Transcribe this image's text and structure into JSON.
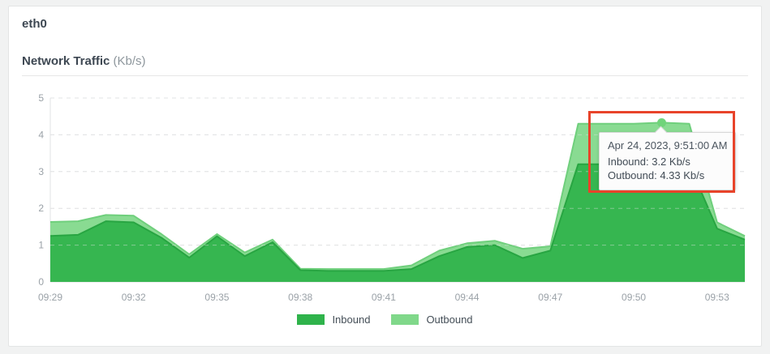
{
  "page": {
    "interface_name": "eth0",
    "chart_title": "Network Traffic",
    "chart_title_unit": "(Kb/s)"
  },
  "colors": {
    "inbound_fill": "#2fb34b",
    "inbound_stroke": "#28a542",
    "outbound_fill": "#80d88a",
    "outbound_stroke": "#6fcf7c",
    "grid_line": "#e2e3e4",
    "axis_base_line": "#d9dbdb",
    "tick_label": "#9aa1a7",
    "hover_dot": "#70d47a",
    "annotation_red": "#e8432a"
  },
  "tooltip": {
    "timestamp": "Apr 24, 2023, 9:51:00 AM",
    "inbound_line": "Inbound: 3.2 Kb/s",
    "outbound_line": "Outbound: 4.33 Kb/s"
  },
  "legend": {
    "items": [
      {
        "label": "Inbound",
        "color": "#2fb34b"
      },
      {
        "label": "Outbound",
        "color": "#80d88a"
      }
    ]
  },
  "chart_data": {
    "type": "area",
    "title": "Network Traffic (Kb/s)",
    "xlabel": "",
    "ylabel": "Kb/s",
    "ylim": [
      0,
      5
    ],
    "y_ticks": [
      0,
      1,
      2,
      3,
      4,
      5
    ],
    "grid": "horizontal-dashed",
    "legend_position": "bottom",
    "x": [
      "09:29",
      "09:30",
      "09:31",
      "09:32",
      "09:33",
      "09:34",
      "09:35",
      "09:36",
      "09:37",
      "09:38",
      "09:39",
      "09:40",
      "09:41",
      "09:42",
      "09:43",
      "09:44",
      "09:45",
      "09:46",
      "09:47",
      "09:48",
      "09:49",
      "09:50",
      "09:51",
      "09:52",
      "09:53",
      "09:54"
    ],
    "x_tick_labels": [
      "09:29",
      "09:32",
      "09:35",
      "09:38",
      "09:41",
      "09:44",
      "09:47",
      "09:50",
      "09:53"
    ],
    "series": [
      {
        "name": "Outbound",
        "color": "#80d88a",
        "values": [
          1.63,
          1.65,
          1.82,
          1.8,
          1.3,
          0.75,
          1.3,
          0.8,
          1.15,
          0.36,
          0.35,
          0.35,
          0.35,
          0.45,
          0.85,
          1.05,
          1.12,
          0.9,
          0.97,
          4.3,
          4.3,
          4.3,
          4.33,
          4.3,
          1.62,
          1.25
        ]
      },
      {
        "name": "Inbound",
        "color": "#2fb34b",
        "values": [
          1.25,
          1.28,
          1.65,
          1.62,
          1.2,
          0.66,
          1.24,
          0.7,
          1.08,
          0.32,
          0.3,
          0.3,
          0.3,
          0.35,
          0.7,
          0.95,
          1.0,
          0.65,
          0.85,
          3.2,
          3.2,
          3.2,
          3.2,
          3.2,
          1.45,
          1.15
        ]
      }
    ],
    "hovered_point": {
      "x": "09:51",
      "inbound": 3.2,
      "outbound": 4.33
    }
  }
}
